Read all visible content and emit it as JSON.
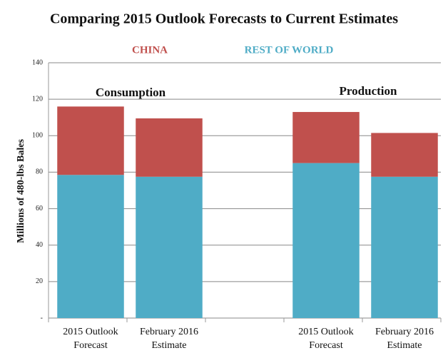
{
  "chart_data": {
    "type": "stacked-bar",
    "title": "Comparing 2015 Outlook Forecasts to Current Estimates",
    "y_label": "Millions of 480-lbs Bales",
    "annotations": [
      "Consumption",
      "Production"
    ],
    "categories": [
      "2015 Outlook Forecast",
      "February 2016 Estimate",
      null,
      "2015 Outlook Forecast",
      "February 2016 Estimate"
    ],
    "series": [
      {
        "name": "REST OF WORLD",
        "color": "#4facc6",
        "values": [
          78.5,
          77.5,
          null,
          85,
          77.5
        ]
      },
      {
        "name": "CHINA",
        "color": "#c0504d",
        "values": [
          37.5,
          32,
          null,
          28,
          24
        ]
      }
    ],
    "ylim": [
      0,
      140
    ],
    "yticks": [
      {
        "value": 0,
        "label": "-"
      },
      20,
      40,
      60,
      80,
      100,
      120,
      140
    ],
    "grid": true
  }
}
